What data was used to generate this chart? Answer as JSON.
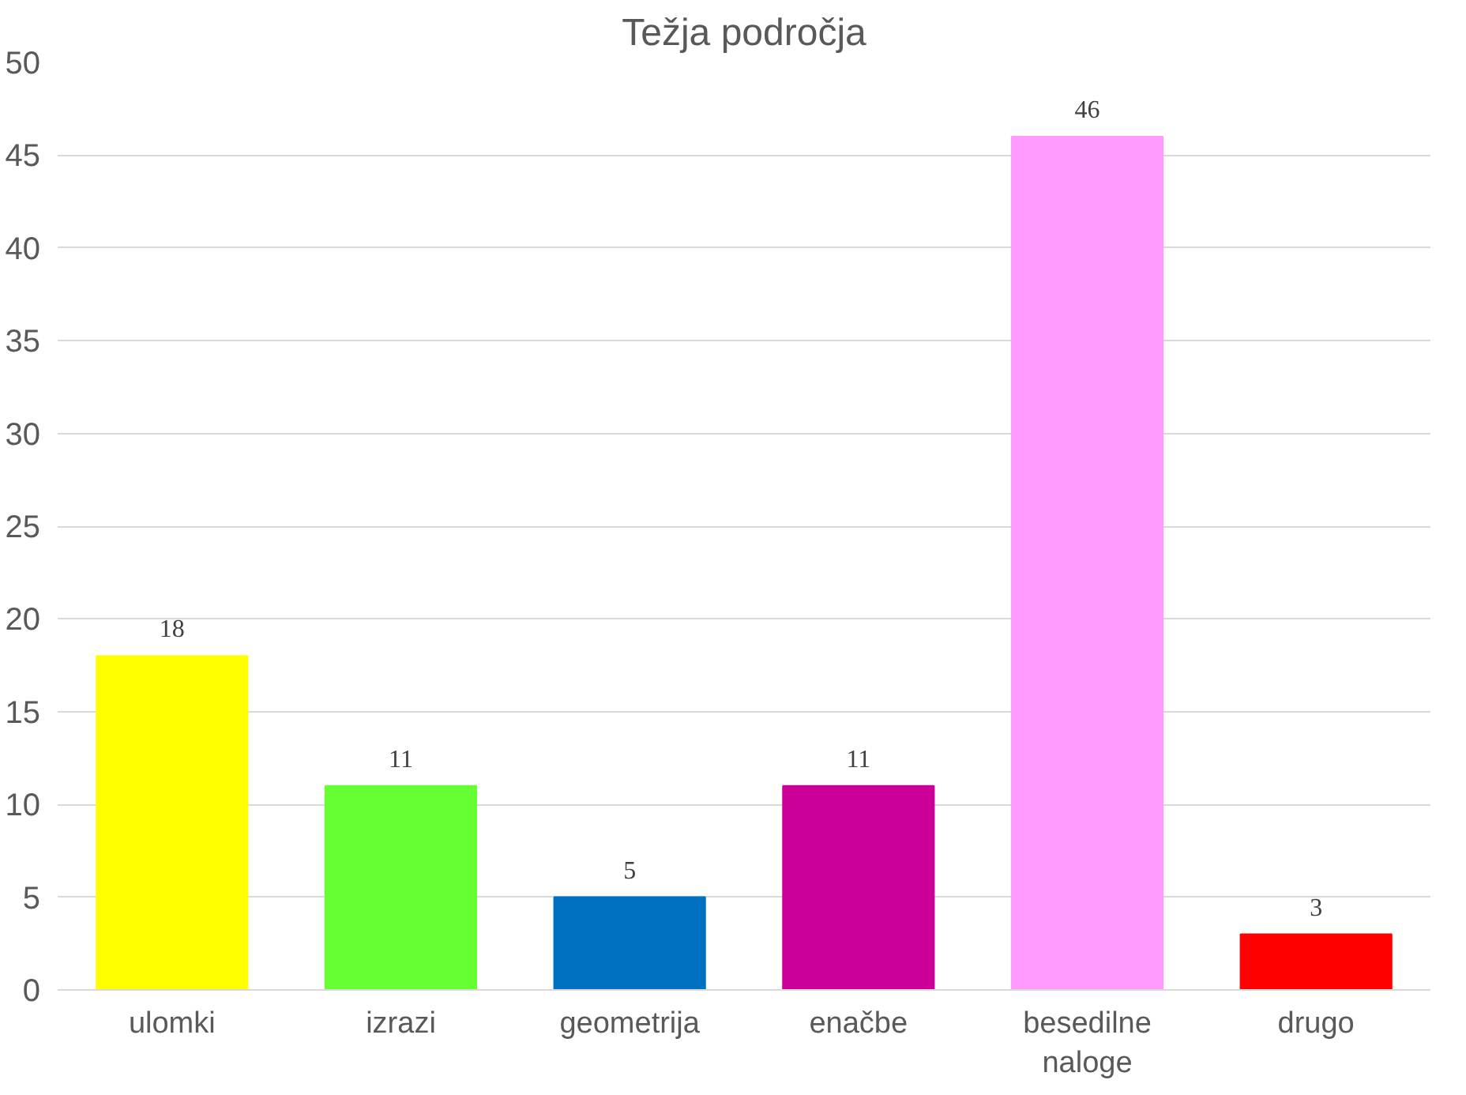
{
  "chart_data": {
    "type": "bar",
    "title": "Težja področja",
    "categories": [
      "ulomki",
      "izrazi",
      "geometrija",
      "enačbe",
      "besedilne naloge",
      "drugo"
    ],
    "values": [
      18,
      11,
      5,
      11,
      46,
      3
    ],
    "colors": [
      "#ffff00",
      "#66ff33",
      "#0070c0",
      "#cc0099",
      "#ff99ff",
      "#ff0000"
    ],
    "ylim": [
      0,
      50
    ],
    "yticks": [
      0,
      5,
      10,
      15,
      20,
      25,
      30,
      35,
      40,
      45,
      50
    ],
    "grid": "y",
    "data_labels": true
  }
}
